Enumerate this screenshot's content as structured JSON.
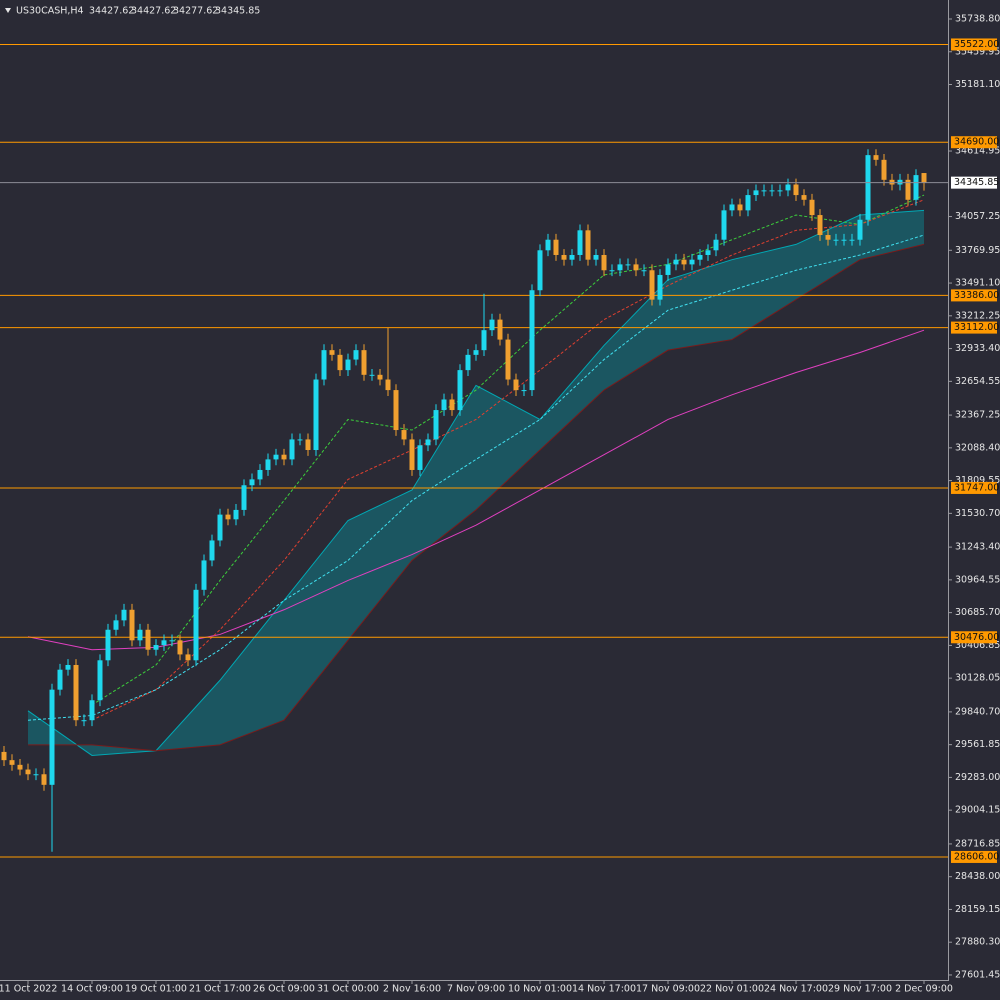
{
  "chart_data": {
    "type": "candlestick",
    "symbol": "US30CASH,H4",
    "up_color": "#1fd8ee",
    "down_color": "#f0a030",
    "categories": [
      null,
      null,
      null,
      "11 Oct 2022",
      null,
      null,
      null,
      null,
      null,
      null,
      null,
      "14 Oct 09:00",
      null,
      null,
      null,
      null,
      null,
      null,
      null,
      "19 Oct 01:00",
      null,
      null,
      null,
      null,
      null,
      null,
      null,
      "21 Oct 17:00",
      null,
      null,
      null,
      null,
      null,
      null,
      null,
      "26 Oct 09:00",
      null,
      null,
      null,
      null,
      null,
      null,
      null,
      "31 Oct 00:00",
      null,
      null,
      null,
      null,
      null,
      null,
      null,
      "2 Nov 16:00",
      null,
      null,
      null,
      null,
      null,
      null,
      null,
      "7 Nov 09:00",
      null,
      null,
      null,
      null,
      null,
      null,
      null,
      "10 Nov 01:00",
      null,
      null,
      null,
      null,
      null,
      null,
      null,
      "14 Nov 17:00",
      null,
      null,
      null,
      null,
      null,
      null,
      null,
      "17 Nov 09:00",
      null,
      null,
      null,
      null,
      null,
      null,
      null,
      "22 Nov 01:00",
      null,
      null,
      null,
      null,
      null,
      null,
      null,
      "24 Nov 17:00",
      null,
      null,
      null,
      null,
      null,
      null,
      null,
      "29 Nov 17:00",
      null,
      null,
      null,
      null,
      null,
      null,
      null,
      "2 Dec 09:00"
    ],
    "open": [
      29500,
      29430,
      29390,
      29350,
      29310,
      29310,
      29220,
      30030,
      30200,
      30240,
      29770,
      29770,
      29940,
      30280,
      30540,
      30620,
      30710,
      30450,
      30540,
      30370,
      30410,
      30450,
      30450,
      30330,
      30280,
      30880,
      31130,
      31300,
      31520,
      31480,
      31560,
      31770,
      31820,
      31900,
      31990,
      32030,
      31990,
      32160,
      32160,
      32070,
      32670,
      32920,
      32880,
      32750,
      32840,
      32920,
      32710,
      32710,
      32670,
      32580,
      32240,
      32160,
      31900,
      32110,
      32160,
      32410,
      32500,
      32410,
      32750,
      32880,
      32920,
      33090,
      33180,
      33010,
      32670,
      32580,
      32580,
      33430,
      33770,
      33860,
      33730,
      33690,
      33730,
      33940,
      33690,
      33730,
      33600,
      33600,
      33650,
      33650,
      33600,
      33600,
      33350,
      33560,
      33650,
      33690,
      33650,
      33690,
      33730,
      33770,
      33860,
      34110,
      34160,
      34110,
      34240,
      34280,
      34280,
      34280,
      34280,
      34330,
      34240,
      34200,
      34070,
      33900,
      33860,
      33860,
      33860,
      33860,
      34030,
      34580,
      34540,
      34370,
      34330,
      34370,
      34200,
      34427.62
    ],
    "high": [
      29550,
      29480,
      29440,
      29400,
      29360,
      29360,
      30080,
      30250,
      30290,
      30290,
      29820,
      29990,
      30330,
      30590,
      30670,
      30760,
      30760,
      30590,
      30590,
      30460,
      30500,
      30500,
      30500,
      30380,
      30930,
      31180,
      31350,
      31570,
      31570,
      31610,
      31820,
      31870,
      31950,
      32040,
      32080,
      32080,
      32210,
      32210,
      32210,
      32720,
      32970,
      32970,
      32930,
      32890,
      32970,
      32970,
      32760,
      32760,
      33110,
      32630,
      32290,
      32210,
      32160,
      32210,
      32460,
      32550,
      32550,
      32800,
      32930,
      32970,
      33400,
      33230,
      33230,
      33060,
      32720,
      32630,
      33480,
      33820,
      33910,
      33910,
      33780,
      33780,
      33990,
      33990,
      33780,
      33780,
      33650,
      33700,
      33700,
      33700,
      33650,
      33650,
      33610,
      33700,
      33740,
      33740,
      33740,
      33780,
      33820,
      33910,
      34160,
      34210,
      34210,
      34290,
      34330,
      34330,
      34330,
      34330,
      34380,
      34380,
      34290,
      34250,
      34120,
      33950,
      33910,
      33910,
      33910,
      34080,
      34630,
      34630,
      34590,
      34420,
      34420,
      34420,
      34460,
      34427.62
    ],
    "low": [
      29380,
      29340,
      29300,
      29260,
      29260,
      29170,
      28650,
      29980,
      30150,
      29720,
      29720,
      29720,
      29890,
      30230,
      30490,
      30570,
      30400,
      30400,
      30320,
      30320,
      30360,
      30400,
      30280,
      30230,
      30230,
      30830,
      31080,
      31250,
      31430,
      31430,
      31510,
      31720,
      31770,
      31850,
      31940,
      31940,
      31940,
      32110,
      32020,
      32020,
      32620,
      32830,
      32700,
      32700,
      32790,
      32660,
      32660,
      32620,
      32530,
      32190,
      32110,
      31850,
      31850,
      32060,
      32110,
      32360,
      32360,
      32360,
      32700,
      32830,
      32870,
      33040,
      32960,
      32620,
      32530,
      32530,
      32530,
      33380,
      33720,
      33680,
      33640,
      33640,
      33680,
      33640,
      33640,
      33550,
      33550,
      33550,
      33600,
      33550,
      33550,
      33300,
      33300,
      33510,
      33600,
      33600,
      33600,
      33640,
      33680,
      33720,
      33810,
      34060,
      34060,
      34060,
      34190,
      34230,
      34230,
      34230,
      34230,
      34190,
      34150,
      34020,
      33850,
      33810,
      33810,
      33810,
      33810,
      33810,
      33980,
      34490,
      34320,
      34280,
      34280,
      34150,
      34150,
      34277.62
    ],
    "close": [
      29430,
      29390,
      29350,
      29310,
      29310,
      29220,
      30030,
      30200,
      30240,
      29770,
      29770,
      29940,
      30280,
      30540,
      30620,
      30710,
      30450,
      30540,
      30370,
      30410,
      30450,
      30450,
      30330,
      30280,
      30880,
      31130,
      31300,
      31520,
      31480,
      31560,
      31770,
      31820,
      31900,
      31990,
      32030,
      31990,
      32160,
      32160,
      32070,
      32670,
      32920,
      32880,
      32750,
      32840,
      32920,
      32710,
      32710,
      32670,
      32580,
      32240,
      32160,
      31900,
      32110,
      32160,
      32410,
      32500,
      32410,
      32750,
      32880,
      32920,
      33090,
      33180,
      33010,
      32670,
      32580,
      32580,
      33430,
      33770,
      33860,
      33730,
      33690,
      33730,
      33940,
      33690,
      33730,
      33600,
      33600,
      33650,
      33650,
      33600,
      33600,
      33350,
      33560,
      33650,
      33690,
      33650,
      33690,
      33730,
      33770,
      33860,
      34110,
      34160,
      34110,
      34240,
      34280,
      34280,
      34280,
      34280,
      34330,
      34240,
      34200,
      34070,
      33900,
      33860,
      33860,
      33860,
      33860,
      34030,
      34580,
      34540,
      34370,
      34330,
      34370,
      34200,
      34410,
      34345.85
    ],
    "indicators": [
      {
        "color": "#00a8b4",
        "fill": true,
        "values": [
          29850,
          29470,
          29510,
          30110,
          30790,
          31470,
          31730,
          32620,
          32330,
          32960,
          33520,
          33690,
          33820,
          34070,
          34110
        ]
      },
      {
        "color": "#7a1a1a",
        "values": [
          29560,
          29560,
          29510,
          29560,
          29770,
          30450,
          31130,
          31560,
          32070,
          32580,
          32920,
          33010,
          33350,
          33690,
          33820
        ]
      },
      {
        "color": "#e040c0",
        "values": [
          30480,
          30370,
          30390,
          30500,
          30710,
          30960,
          31180,
          31430,
          31730,
          32030,
          32330,
          32540,
          32730,
          32900,
          33090
        ]
      },
      {
        "color": "#3ccf3c",
        "dashed": true,
        "values": [
          null,
          29900,
          30240,
          30960,
          31640,
          32330,
          32240,
          32580,
          33090,
          33560,
          33650,
          33860,
          34070,
          33990,
          34240
        ]
      },
      {
        "color": "#e04030",
        "dashed": true,
        "values": [
          null,
          29770,
          30030,
          30540,
          31130,
          31820,
          32070,
          32330,
          32750,
          33180,
          33470,
          33730,
          33940,
          33990,
          34200
        ]
      },
      {
        "color": "#40e0f0",
        "dashed": true,
        "values": [
          29770,
          29810,
          30030,
          30370,
          30790,
          31130,
          31640,
          31990,
          32330,
          32840,
          33260,
          33430,
          33600,
          33730,
          33900
        ]
      }
    ],
    "levels": [
      {
        "value": 35522,
        "label": "35522.00"
      },
      {
        "value": 34690,
        "label": "34690.00"
      },
      {
        "value": 33386,
        "label": "33386.00"
      },
      {
        "value": 33112,
        "label": "33112.00"
      },
      {
        "value": 31747,
        "label": "31747.00"
      },
      {
        "value": 30476,
        "label": "30476.00"
      },
      {
        "value": 28606,
        "label": "28606.00"
      }
    ],
    "level_color": "#ff9900",
    "ylim": [
      27558.6,
      35883.5
    ],
    "yticks": [
      {
        "value": 35738.8,
        "label": "35738.80"
      },
      35459.95,
      {
        "value": 35181.1,
        "label": "35181.10"
      },
      34614.95,
      {
        "value": 34057.25,
        "label": "34057.25"
      },
      33769.95,
      {
        "value": 33491.1,
        "label": "33491.10"
      },
      33212.25,
      {
        "value": 32933.4,
        "label": "32933.40"
      },
      32654.55,
      32367.25,
      {
        "value": 32088.4,
        "label": "32088.40"
      },
      31809.55,
      {
        "value": 31530.7,
        "label": "31530.70"
      },
      {
        "value": 31243.4,
        "label": "31243.40"
      },
      30964.55,
      {
        "value": 30685.7,
        "label": "30685.70"
      },
      30406.85,
      30128.05,
      {
        "value": 29840.7,
        "label": "29840.70"
      },
      29561.85,
      {
        "value": 29283,
        "label": "29283.00"
      },
      29004.15,
      28716.85,
      {
        "value": 28438,
        "label": "28438.00"
      },
      28159.15,
      {
        "value": 27880.3,
        "label": "27880.30"
      },
      27601.45
    ],
    "grid": false
  }
}
